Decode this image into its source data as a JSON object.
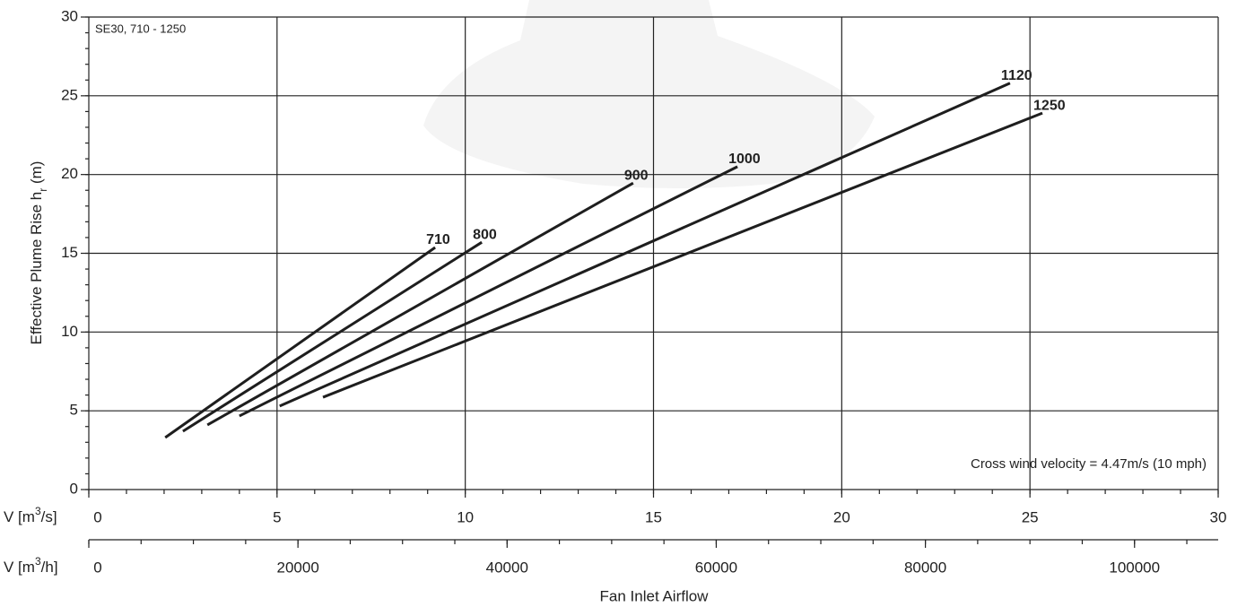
{
  "chart_data": {
    "type": "line",
    "annotations": [
      "SE30, 710 - 1250",
      "Cross wind velocity = 4.47m/s (10 mph)"
    ],
    "ylabel": [
      "Effective Plume Rise h",
      "r",
      " (m)"
    ],
    "xlabel": "Fan Inlet Airflow",
    "x_axis_label": [
      "V [m",
      "3",
      "/s]"
    ],
    "x2_axis_label": [
      "V [m",
      "3",
      "/h]"
    ],
    "xlim": [
      0,
      30
    ],
    "xticks": [
      0,
      5,
      10,
      15,
      20,
      25,
      30
    ],
    "x_minor_step": 1,
    "x2lim": [
      0,
      108000
    ],
    "x2ticks": [
      0,
      20000,
      40000,
      60000,
      80000,
      100000
    ],
    "x2_minor_step": 5000,
    "ylim": [
      0,
      30
    ],
    "yticks": [
      0,
      5,
      10,
      15,
      20,
      25,
      30
    ],
    "y_minor_step": 1,
    "grid": true,
    "series": [
      {
        "name": "710",
        "color": "#1e1e1e",
        "x": [
          2.03,
          9.2
        ],
        "values": [
          3.3,
          15.37
        ]
      },
      {
        "name": "800",
        "color": "#1e1e1e",
        "x": [
          2.5,
          10.44
        ],
        "values": [
          3.7,
          15.7
        ]
      },
      {
        "name": "900",
        "color": "#1e1e1e",
        "x": [
          3.15,
          14.46
        ],
        "values": [
          4.1,
          19.46
        ]
      },
      {
        "name": "1000",
        "color": "#1e1e1e",
        "x": [
          4.0,
          17.23
        ],
        "values": [
          4.67,
          20.5
        ]
      },
      {
        "name": "1120",
        "color": "#1e1e1e",
        "x": [
          5.07,
          24.47
        ],
        "values": [
          5.3,
          25.8
        ]
      },
      {
        "name": "1250",
        "color": "#1e1e1e",
        "x": [
          6.22,
          25.33
        ],
        "values": [
          5.86,
          23.9
        ]
      }
    ]
  }
}
